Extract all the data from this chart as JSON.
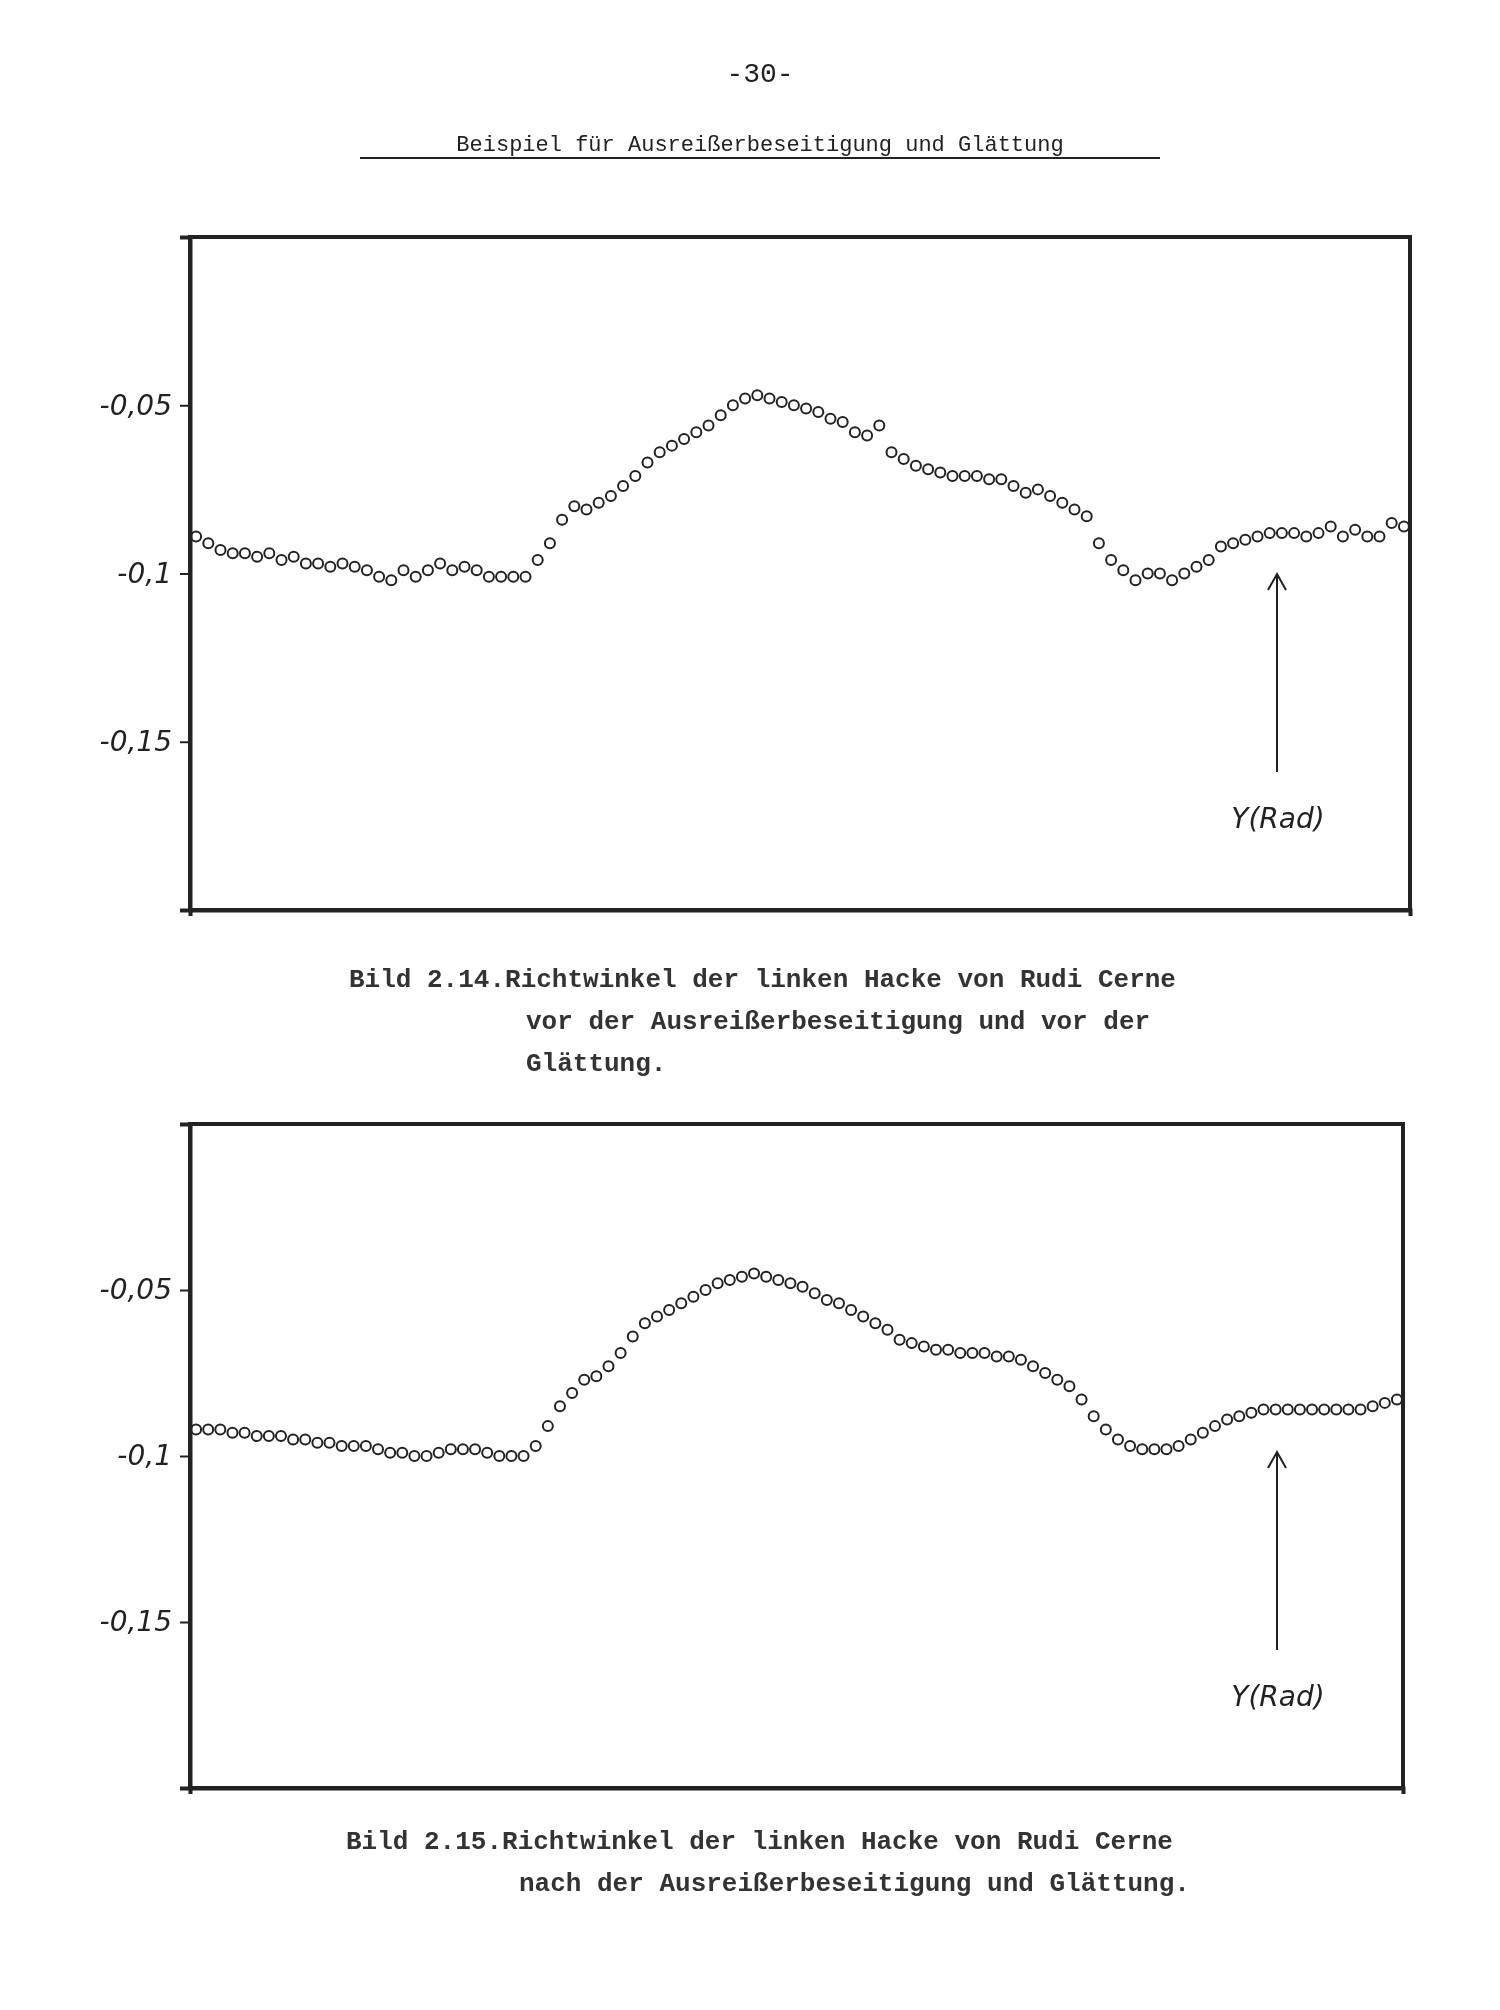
{
  "chart_data": [
    {
      "type": "scatter",
      "title": "Beispiel für Ausreißerbeseitigung und Glättung",
      "annotations": [
        "-30-",
        "Bild 2.14.Richtwinkel der linken Hacke von Rudi Cerne vor der Ausreißerbeseitigung und vor der Glättung."
      ],
      "ylabel": "Y(Rad)",
      "marker": "circle",
      "color": "#222222",
      "tick_labels": "y",
      "ylim": [
        -0.2,
        0
      ],
      "yticks": [
        {
          "value": -0.05,
          "label": "-0,05"
        },
        {
          "value": -0.1,
          "label": "-0,1"
        },
        {
          "value": -0.15,
          "label": "-0,15"
        }
      ],
      "categories": [
        null,
        null,
        null,
        null,
        null,
        null,
        null,
        null,
        null,
        null,
        null,
        null,
        null,
        null,
        null,
        null,
        null,
        null,
        null,
        null,
        null,
        null,
        null,
        null,
        null,
        null,
        null,
        null,
        null,
        null,
        null,
        null,
        null,
        null,
        null,
        null,
        null,
        null,
        null,
        null,
        null,
        null,
        null,
        null,
        null,
        null,
        null,
        null,
        null,
        null,
        null,
        null,
        null,
        null,
        null,
        null,
        null,
        null,
        null,
        null,
        null,
        null,
        null,
        null,
        null,
        null,
        null,
        null,
        null,
        null,
        null,
        null,
        null,
        null,
        null,
        null,
        null,
        null,
        null,
        null,
        null,
        null,
        null,
        null,
        null,
        null,
        null,
        null,
        null,
        null,
        null,
        null,
        null,
        null,
        null,
        null,
        null,
        null,
        null,
        null
      ],
      "values": [
        -0.089,
        -0.091,
        -0.093,
        -0.094,
        -0.094,
        -0.095,
        -0.094,
        -0.096,
        -0.095,
        -0.097,
        -0.097,
        -0.098,
        -0.097,
        -0.098,
        -0.099,
        -0.101,
        -0.102,
        -0.099,
        -0.101,
        -0.099,
        -0.097,
        -0.099,
        -0.098,
        -0.099,
        -0.101,
        -0.101,
        -0.101,
        -0.101,
        -0.096,
        -0.091,
        -0.084,
        -0.08,
        -0.081,
        -0.079,
        -0.077,
        -0.074,
        -0.071,
        -0.067,
        -0.064,
        -0.062,
        -0.06,
        -0.058,
        -0.056,
        -0.053,
        -0.05,
        -0.048,
        -0.047,
        -0.048,
        -0.049,
        -0.05,
        -0.051,
        -0.052,
        -0.054,
        -0.055,
        -0.058,
        -0.059,
        -0.056,
        -0.064,
        -0.066,
        -0.068,
        -0.069,
        -0.07,
        -0.071,
        -0.071,
        -0.071,
        -0.072,
        -0.072,
        -0.074,
        -0.076,
        -0.075,
        -0.077,
        -0.079,
        -0.081,
        -0.083,
        -0.091,
        -0.096,
        -0.099,
        -0.102,
        -0.1,
        -0.1,
        -0.102,
        -0.1,
        -0.098,
        -0.096,
        -0.092,
        -0.091,
        -0.09,
        -0.089,
        -0.088,
        -0.088,
        -0.088,
        -0.089,
        -0.088,
        -0.086,
        -0.089,
        -0.087,
        -0.089,
        -0.089,
        -0.085,
        -0.086
      ]
    },
    {
      "type": "scatter",
      "annotations": [
        "Bild 2.15.Richtwinkel der linken Hacke von Rudi Cerne nach der Ausreißerbeseitigung und Glättung."
      ],
      "ylabel": "Y(Rad)",
      "marker": "circle",
      "color": "#222222",
      "tick_labels": "y",
      "ylim": [
        -0.2,
        0
      ],
      "yticks": [
        {
          "value": -0.05,
          "label": "-0,05"
        },
        {
          "value": -0.1,
          "label": "-0,1"
        },
        {
          "value": -0.15,
          "label": "-0,15"
        }
      ],
      "categories": [
        null,
        null,
        null,
        null,
        null,
        null,
        null,
        null,
        null,
        null,
        null,
        null,
        null,
        null,
        null,
        null,
        null,
        null,
        null,
        null,
        null,
        null,
        null,
        null,
        null,
        null,
        null,
        null,
        null,
        null,
        null,
        null,
        null,
        null,
        null,
        null,
        null,
        null,
        null,
        null,
        null,
        null,
        null,
        null,
        null,
        null,
        null,
        null,
        null,
        null,
        null,
        null,
        null,
        null,
        null,
        null,
        null,
        null,
        null,
        null,
        null,
        null,
        null,
        null,
        null,
        null,
        null,
        null,
        null,
        null,
        null,
        null,
        null,
        null,
        null,
        null,
        null,
        null,
        null,
        null,
        null,
        null,
        null,
        null,
        null,
        null,
        null,
        null,
        null,
        null,
        null,
        null,
        null,
        null,
        null,
        null,
        null,
        null,
        null,
        null
      ],
      "values": [
        -0.092,
        -0.092,
        -0.092,
        -0.093,
        -0.093,
        -0.094,
        -0.094,
        -0.094,
        -0.095,
        -0.095,
        -0.096,
        -0.096,
        -0.097,
        -0.097,
        -0.097,
        -0.098,
        -0.099,
        -0.099,
        -0.1,
        -0.1,
        -0.099,
        -0.098,
        -0.098,
        -0.098,
        -0.099,
        -0.1,
        -0.1,
        -0.1,
        -0.097,
        -0.091,
        -0.085,
        -0.081,
        -0.077,
        -0.076,
        -0.073,
        -0.069,
        -0.064,
        -0.06,
        -0.058,
        -0.056,
        -0.054,
        -0.052,
        -0.05,
        -0.048,
        -0.047,
        -0.046,
        -0.045,
        -0.046,
        -0.047,
        -0.048,
        -0.049,
        -0.051,
        -0.053,
        -0.054,
        -0.056,
        -0.058,
        -0.06,
        -0.062,
        -0.065,
        -0.066,
        -0.067,
        -0.068,
        -0.068,
        -0.069,
        -0.069,
        -0.069,
        -0.07,
        -0.07,
        -0.071,
        -0.073,
        -0.075,
        -0.077,
        -0.079,
        -0.083,
        -0.088,
        -0.092,
        -0.095,
        -0.097,
        -0.098,
        -0.098,
        -0.098,
        -0.097,
        -0.095,
        -0.093,
        -0.091,
        -0.089,
        -0.088,
        -0.087,
        -0.086,
        -0.086,
        -0.086,
        -0.086,
        -0.086,
        -0.086,
        -0.086,
        -0.086,
        -0.086,
        -0.085,
        -0.084,
        -0.083
      ]
    }
  ]
}
